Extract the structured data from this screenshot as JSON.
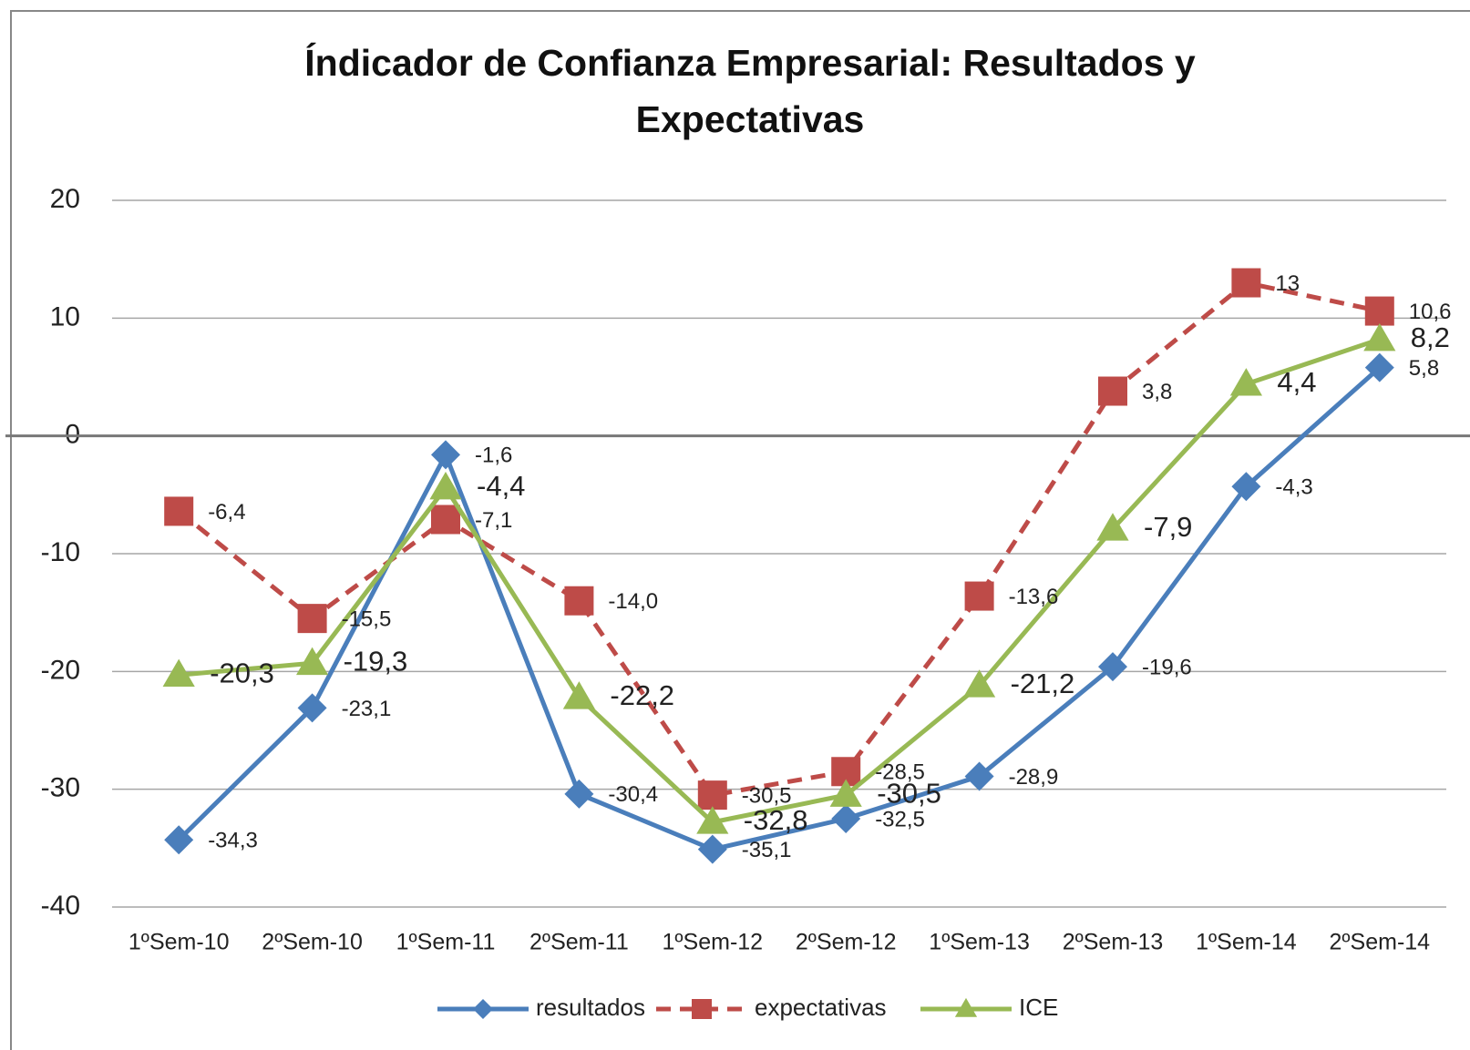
{
  "chart_data": {
    "type": "line",
    "title": "Índicador de Confianza Empresarial: Resultados y Expectativas",
    "categories": [
      "1ºSem-10",
      "2ºSem-10",
      "1ºSem-11",
      "2ºSem-11",
      "1ºSem-12",
      "2ºSem-12",
      "1ºSem-13",
      "2ºSem-13",
      "1ºSem-14",
      "2ºSem-14"
    ],
    "series": [
      {
        "name": "resultados",
        "color": "#4a7ebb",
        "marker": "diamond",
        "dash": false,
        "values": [
          -34.3,
          -23.1,
          -1.6,
          -30.4,
          -35.1,
          -32.5,
          -28.9,
          -19.6,
          -4.3,
          5.8
        ],
        "value_labels": [
          "-34,3",
          "-23,1",
          "-1,6",
          "-30,4",
          "-35,1",
          "-32,5",
          "-28,9",
          "-19,6",
          "-4,3",
          "5,8"
        ]
      },
      {
        "name": "expectativas",
        "color": "#be4b48",
        "marker": "square",
        "dash": true,
        "values": [
          -6.4,
          -15.5,
          -7.1,
          -14.0,
          -30.5,
          -28.5,
          -13.6,
          3.8,
          13,
          10.6
        ],
        "value_labels": [
          "-6,4",
          "-15,5",
          "-7,1",
          "-14,0",
          "-30,5",
          "-28,5",
          "-13,6",
          "3,8",
          "13",
          "10,6"
        ]
      },
      {
        "name": "ICE",
        "color": "#98b954",
        "marker": "triangle",
        "dash": false,
        "values": [
          -20.3,
          -19.3,
          -4.4,
          -22.2,
          -32.8,
          -30.5,
          -21.2,
          -7.9,
          4.4,
          8.2
        ],
        "value_labels": [
          "-20,3",
          "-19,3",
          "-4,4",
          "-22,2",
          "-32,8",
          "-30,5",
          "-21,2",
          "-7,9",
          "4,4",
          "8,2"
        ]
      }
    ],
    "ylim": [
      -40,
      20
    ],
    "yticks": [
      20,
      10,
      0,
      -10,
      -20,
      -30,
      -40
    ],
    "grid": true,
    "legend": "bottom"
  }
}
